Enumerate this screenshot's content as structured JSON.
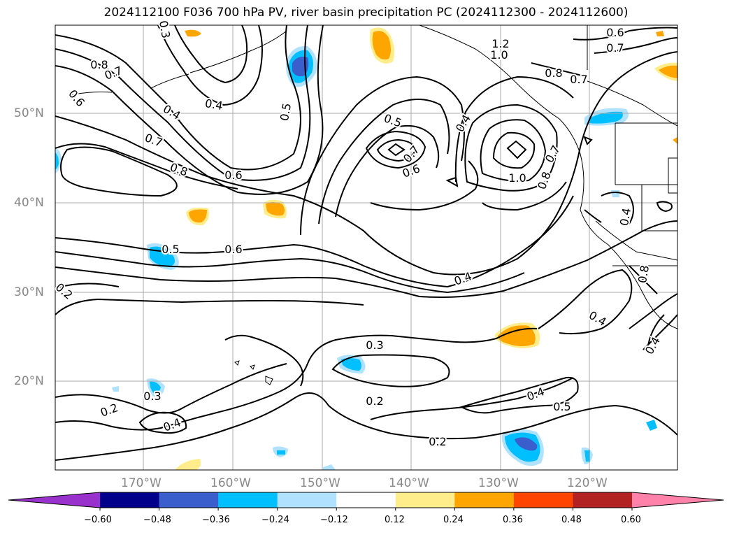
{
  "title": "2024112100 F036 700 hPa PV, river basin precipitation PC (2024112300 - 2024112600)",
  "lat_labels": [
    "50°N",
    "40°N",
    "30°N",
    "20°N"
  ],
  "lon_labels": [
    "170°W",
    "160°W",
    "150°W",
    "140°W",
    "130°W",
    "120°W"
  ],
  "contour_labels": [
    {
      "text": "0.8"
    },
    {
      "text": "0.7"
    },
    {
      "text": "0.6"
    },
    {
      "text": "0.3"
    },
    {
      "text": "0.2"
    },
    {
      "text": "0.4"
    },
    {
      "text": "0.7"
    },
    {
      "text": "0.8"
    },
    {
      "text": "0.6"
    },
    {
      "text": "0.5"
    },
    {
      "text": "0.5"
    },
    {
      "text": "0.4"
    },
    {
      "text": "0.7"
    },
    {
      "text": "0.6"
    },
    {
      "text": "1.2"
    },
    {
      "text": "1.0"
    },
    {
      "text": "0.8"
    },
    {
      "text": "0.7"
    },
    {
      "text": "0.6"
    },
    {
      "text": "0.7"
    },
    {
      "text": "0.7"
    },
    {
      "text": "1.0"
    },
    {
      "text": "0.8"
    },
    {
      "text": "0.5"
    },
    {
      "text": "0.6"
    },
    {
      "text": "0.2"
    },
    {
      "text": "0.4"
    },
    {
      "text": "0.3"
    },
    {
      "text": "0.2"
    },
    {
      "text": "0.3"
    },
    {
      "text": "0.4"
    },
    {
      "text": "0.4"
    },
    {
      "text": "0.4"
    },
    {
      "text": "0.5"
    },
    {
      "text": "0.2"
    },
    {
      "text": "0.4"
    },
    {
      "text": "0.8"
    },
    {
      "text": "0.4"
    },
    {
      "text": "0.4"
    }
  ],
  "colorbar": {
    "colors": [
      "#9932CC",
      "#00008B",
      "#3A5FCD",
      "#00BFFF",
      "#B0E2FF",
      "#FFFFFF",
      "#FFEC8B",
      "#FFA500",
      "#FF4500",
      "#B22222",
      "#FF82AB"
    ],
    "ticks": [
      "−0.60",
      "−0.48",
      "−0.36",
      "−0.24",
      "−0.12",
      "0.12",
      "0.24",
      "0.36",
      "0.48",
      "0.60"
    ]
  }
}
